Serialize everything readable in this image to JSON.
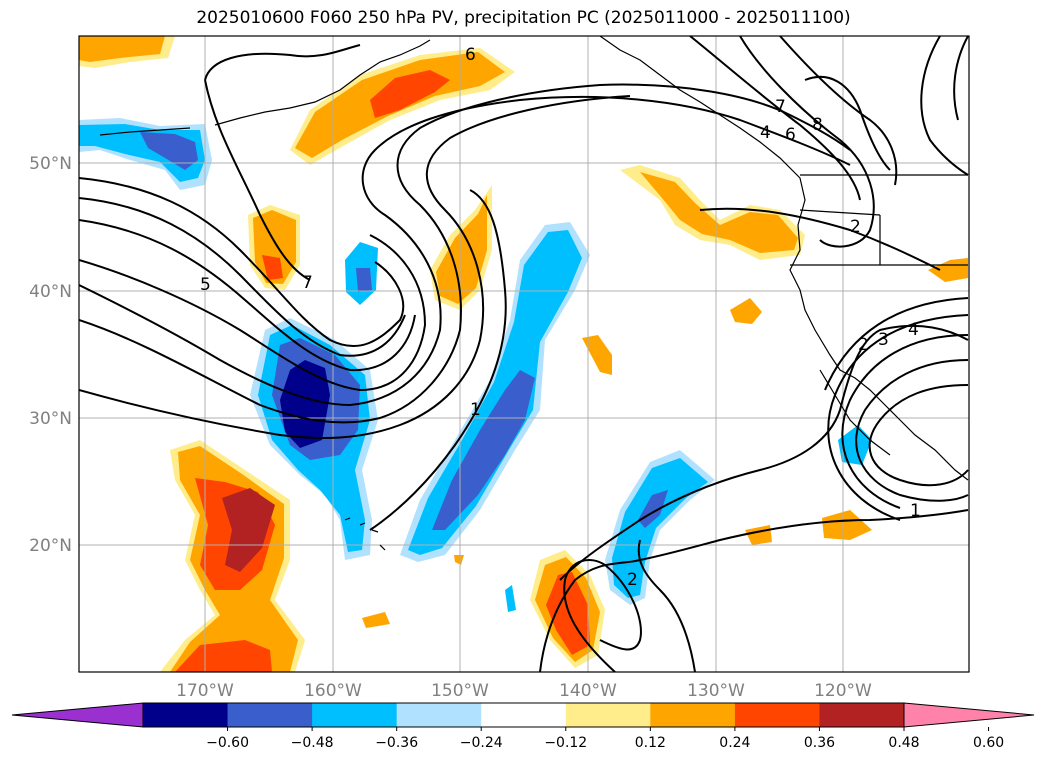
{
  "title": "2025010600 F060 250 hPa PV, precipitation PC (2025011000 - 2025011100)",
  "map": {
    "lat_labels": [
      "50°N",
      "40°N",
      "30°N",
      "20°N"
    ],
    "lon_labels": [
      "170°W",
      "160°W",
      "150°W",
      "140°W",
      "130°W",
      "120°W"
    ],
    "grid": true
  },
  "colorbar": {
    "ticks": [
      "−0.60",
      "−0.48",
      "−0.36",
      "−0.24",
      "−0.12",
      "0.12",
      "0.24",
      "0.36",
      "0.48",
      "0.60"
    ],
    "colors": [
      "#9b30d0",
      "#00008b",
      "#3a5fcd",
      "#00bfff",
      "#b0e2ff",
      "#ffffff",
      "#ffec8b",
      "#ffa500",
      "#ff4500",
      "#b22222",
      "#ff82ab"
    ],
    "extend": "both"
  },
  "contour_labels": [
    "6",
    "7",
    "4",
    "6",
    "8",
    "5",
    "7",
    "2",
    "1",
    "2",
    "3",
    "4",
    "1",
    "2"
  ],
  "colors": {
    "grid": "#b0b0b0",
    "contour": "#000000",
    "coast": "#000000"
  }
}
